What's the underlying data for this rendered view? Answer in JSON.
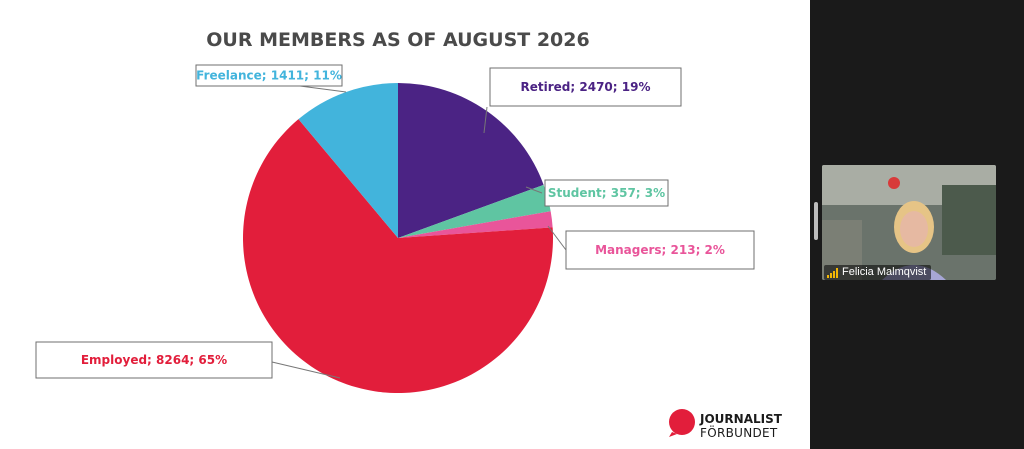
{
  "slide": {
    "title": "OUR MEMBERS AS OF AUGUST 2026",
    "logo": {
      "line1": "JOURNALIST",
      "line2": "FÖRBUNDET",
      "color": "#e21e3b"
    }
  },
  "chart_data": {
    "type": "pie",
    "title": "OUR MEMBERS AS OF AUGUST 2026",
    "slices": [
      {
        "name": "Retired",
        "value": 2470,
        "percent": 19,
        "label": "Retired; 2470; 19%",
        "color": "#4b2384"
      },
      {
        "name": "Student",
        "value": 357,
        "percent": 3,
        "label": "Student; 357; 3%",
        "color": "#5fc5a2"
      },
      {
        "name": "Managers",
        "value": 213,
        "percent": 2,
        "label": "Managers; 213; 2%",
        "color": "#e9559a"
      },
      {
        "name": "Employed",
        "value": 8264,
        "percent": 65,
        "label": "Employed; 8264; 65%",
        "color": "#e21e3b"
      },
      {
        "name": "Freelance",
        "value": 1411,
        "percent": 11,
        "label": "Freelance; 1411; 11%",
        "color": "#42b4dc"
      }
    ]
  },
  "participant": {
    "name": "Felicia Malmqvist",
    "signal_icon": "signal-bars-icon"
  }
}
